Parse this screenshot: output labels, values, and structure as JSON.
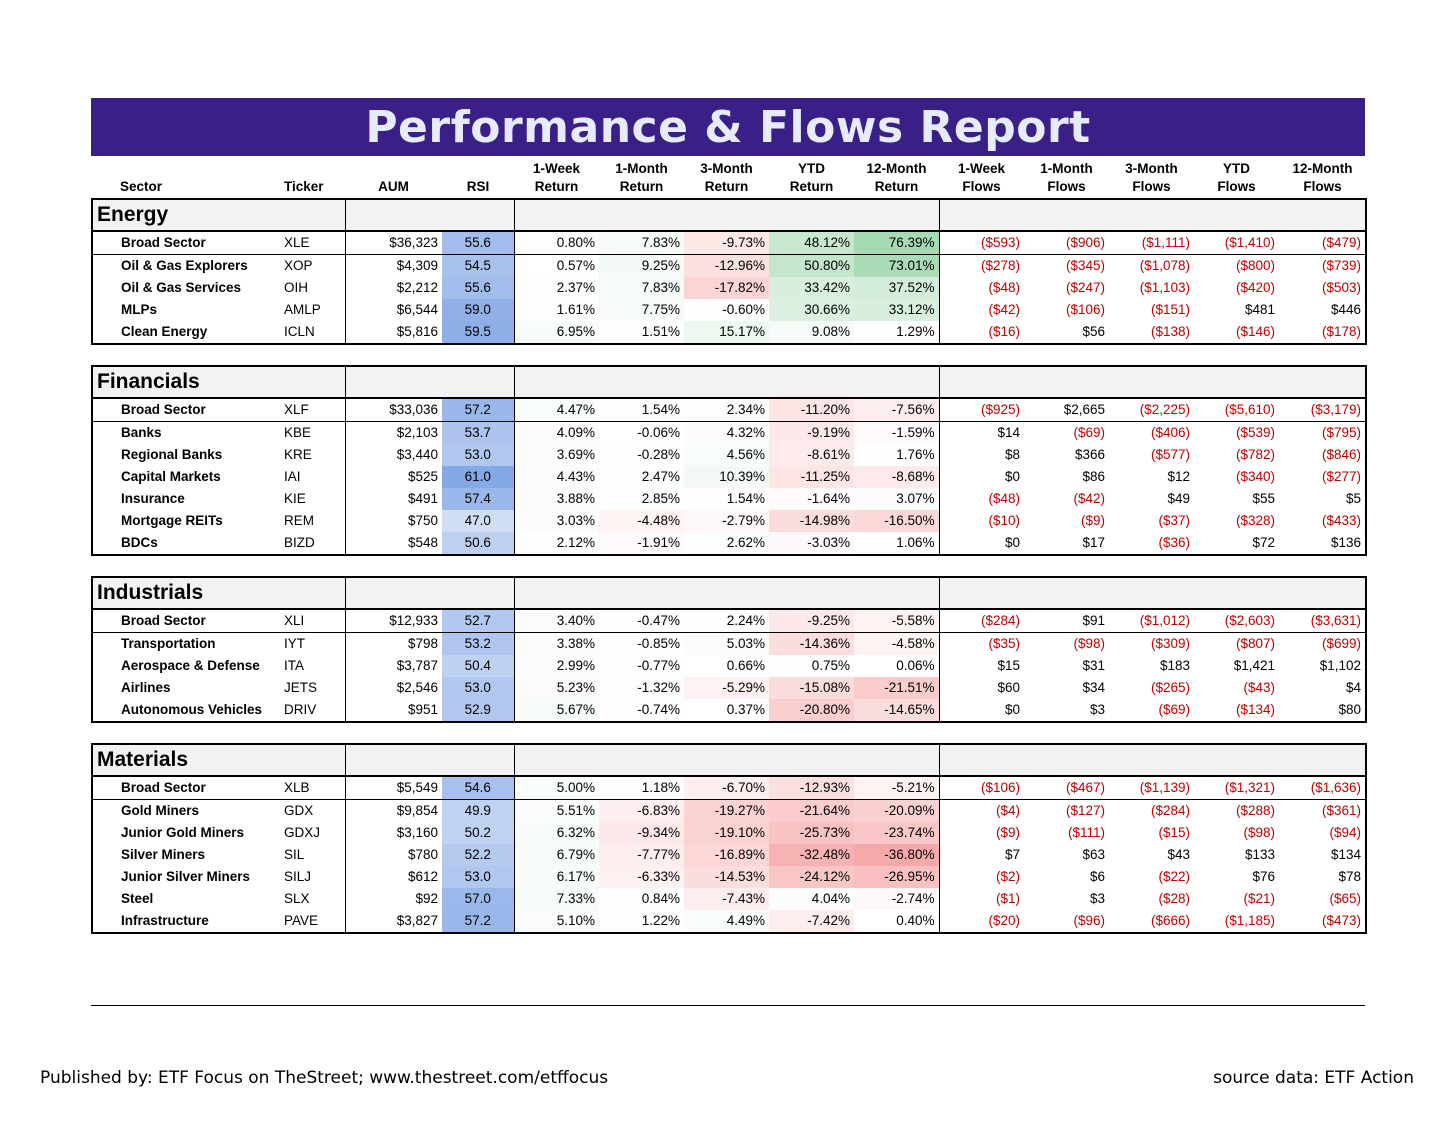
{
  "title": "Performance & Flows Report",
  "headers": {
    "sector": "Sector",
    "ticker": "Ticker",
    "aum": "AUM",
    "rsi": "RSI",
    "r1w": [
      "1-Week",
      "Return"
    ],
    "r1m": [
      "1-Month",
      "Return"
    ],
    "r3m": [
      "3-Month",
      "Return"
    ],
    "rytd": [
      "YTD",
      "Return"
    ],
    "r12m": [
      "12-Month",
      "Return"
    ],
    "f1w": [
      "1-Week",
      "Flows"
    ],
    "f1m": [
      "1-Month",
      "Flows"
    ],
    "f3m": [
      "3-Month",
      "Flows"
    ],
    "fytd": [
      "YTD",
      "Flows"
    ],
    "f12m": [
      "12-Month",
      "Flows"
    ]
  },
  "colors": {
    "banner": "#3a1f86",
    "negative_flow": "#c00000",
    "rsi_scale": "blue",
    "return_positive": "green",
    "return_negative": "red"
  },
  "sections": [
    {
      "name": "Energy",
      "rows": [
        {
          "sector": "Broad Sector",
          "ticker": "XLE",
          "aum": "$36,323",
          "rsi": "55.6",
          "returns": [
            "0.80%",
            "7.83%",
            "-9.73%",
            "48.12%",
            "76.39%"
          ],
          "flows": [
            "($593)",
            "($906)",
            "($1,111)",
            "($1,410)",
            "($479)"
          ]
        },
        {
          "sector": "Oil & Gas Explorers",
          "ticker": "XOP",
          "aum": "$4,309",
          "rsi": "54.5",
          "returns": [
            "0.57%",
            "9.25%",
            "-12.96%",
            "50.80%",
            "73.01%"
          ],
          "flows": [
            "($278)",
            "($345)",
            "($1,078)",
            "($800)",
            "($739)"
          ]
        },
        {
          "sector": "Oil & Gas Services",
          "ticker": "OIH",
          "aum": "$2,212",
          "rsi": "55.6",
          "returns": [
            "2.37%",
            "7.83%",
            "-17.82%",
            "33.42%",
            "37.52%"
          ],
          "flows": [
            "($48)",
            "($247)",
            "($1,103)",
            "($420)",
            "($503)"
          ]
        },
        {
          "sector": "MLPs",
          "ticker": "AMLP",
          "aum": "$6,544",
          "rsi": "59.0",
          "returns": [
            "1.61%",
            "7.75%",
            "-0.60%",
            "30.66%",
            "33.12%"
          ],
          "flows": [
            "($42)",
            "($106)",
            "($151)",
            "$481",
            "$446"
          ]
        },
        {
          "sector": "Clean Energy",
          "ticker": "ICLN",
          "aum": "$5,816",
          "rsi": "59.5",
          "returns": [
            "6.95%",
            "1.51%",
            "15.17%",
            "9.08%",
            "1.29%"
          ],
          "flows": [
            "($16)",
            "$56",
            "($138)",
            "($146)",
            "($178)"
          ]
        }
      ]
    },
    {
      "name": "Financials",
      "rows": [
        {
          "sector": "Broad Sector",
          "ticker": "XLF",
          "aum": "$33,036",
          "rsi": "57.2",
          "returns": [
            "4.47%",
            "1.54%",
            "2.34%",
            "-11.20%",
            "-7.56%"
          ],
          "flows": [
            "($925)",
            "$2,665",
            "($2,225)",
            "($5,610)",
            "($3,179)"
          ]
        },
        {
          "sector": "Banks",
          "ticker": "KBE",
          "aum": "$2,103",
          "rsi": "53.7",
          "returns": [
            "4.09%",
            "-0.06%",
            "4.32%",
            "-9.19%",
            "-1.59%"
          ],
          "flows": [
            "$14",
            "($69)",
            "($406)",
            "($539)",
            "($795)"
          ]
        },
        {
          "sector": "Regional Banks",
          "ticker": "KRE",
          "aum": "$3,440",
          "rsi": "53.0",
          "returns": [
            "3.69%",
            "-0.28%",
            "4.56%",
            "-8.61%",
            "1.76%"
          ],
          "flows": [
            "$8",
            "$366",
            "($577)",
            "($782)",
            "($846)"
          ]
        },
        {
          "sector": "Capital Markets",
          "ticker": "IAI",
          "aum": "$525",
          "rsi": "61.0",
          "returns": [
            "4.43%",
            "2.47%",
            "10.39%",
            "-11.25%",
            "-8.68%"
          ],
          "flows": [
            "$0",
            "$86",
            "$12",
            "($340)",
            "($277)"
          ]
        },
        {
          "sector": "Insurance",
          "ticker": "KIE",
          "aum": "$491",
          "rsi": "57.4",
          "returns": [
            "3.88%",
            "2.85%",
            "1.54%",
            "-1.64%",
            "3.07%"
          ],
          "flows": [
            "($48)",
            "($42)",
            "$49",
            "$55",
            "$5"
          ]
        },
        {
          "sector": "Mortgage REITs",
          "ticker": "REM",
          "aum": "$750",
          "rsi": "47.0",
          "returns": [
            "3.03%",
            "-4.48%",
            "-2.79%",
            "-14.98%",
            "-16.50%"
          ],
          "flows": [
            "($10)",
            "($9)",
            "($37)",
            "($328)",
            "($433)"
          ]
        },
        {
          "sector": "BDCs",
          "ticker": "BIZD",
          "aum": "$548",
          "rsi": "50.6",
          "returns": [
            "2.12%",
            "-1.91%",
            "2.62%",
            "-3.03%",
            "1.06%"
          ],
          "flows": [
            "$0",
            "$17",
            "($36)",
            "$72",
            "$136"
          ]
        }
      ]
    },
    {
      "name": "Industrials",
      "rows": [
        {
          "sector": "Broad Sector",
          "ticker": "XLI",
          "aum": "$12,933",
          "rsi": "52.7",
          "returns": [
            "3.40%",
            "-0.47%",
            "2.24%",
            "-9.25%",
            "-5.58%"
          ],
          "flows": [
            "($284)",
            "$91",
            "($1,012)",
            "($2,603)",
            "($3,631)"
          ]
        },
        {
          "sector": "Transportation",
          "ticker": "IYT",
          "aum": "$798",
          "rsi": "53.2",
          "returns": [
            "3.38%",
            "-0.85%",
            "5.03%",
            "-14.36%",
            "-4.58%"
          ],
          "flows": [
            "($35)",
            "($98)",
            "($309)",
            "($807)",
            "($699)"
          ]
        },
        {
          "sector": "Aerospace & Defense",
          "ticker": "ITA",
          "aum": "$3,787",
          "rsi": "50.4",
          "returns": [
            "2.99%",
            "-0.77%",
            "0.66%",
            "0.75%",
            "0.06%"
          ],
          "flows": [
            "$15",
            "$31",
            "$183",
            "$1,421",
            "$1,102"
          ]
        },
        {
          "sector": "Airlines",
          "ticker": "JETS",
          "aum": "$2,546",
          "rsi": "53.0",
          "returns": [
            "5.23%",
            "-1.32%",
            "-5.29%",
            "-15.08%",
            "-21.51%"
          ],
          "flows": [
            "$60",
            "$34",
            "($265)",
            "($43)",
            "$4"
          ]
        },
        {
          "sector": "Autonomous Vehicles",
          "ticker": "DRIV",
          "aum": "$951",
          "rsi": "52.9",
          "returns": [
            "5.67%",
            "-0.74%",
            "0.37%",
            "-20.80%",
            "-14.65%"
          ],
          "flows": [
            "$0",
            "$3",
            "($69)",
            "($134)",
            "$80"
          ]
        }
      ]
    },
    {
      "name": "Materials",
      "rows": [
        {
          "sector": "Broad Sector",
          "ticker": "XLB",
          "aum": "$5,549",
          "rsi": "54.6",
          "returns": [
            "5.00%",
            "1.18%",
            "-6.70%",
            "-12.93%",
            "-5.21%"
          ],
          "flows": [
            "($106)",
            "($467)",
            "($1,139)",
            "($1,321)",
            "($1,636)"
          ]
        },
        {
          "sector": "Gold Miners",
          "ticker": "GDX",
          "aum": "$9,854",
          "rsi": "49.9",
          "returns": [
            "5.51%",
            "-6.83%",
            "-19.27%",
            "-21.64%",
            "-20.09%"
          ],
          "flows": [
            "($4)",
            "($127)",
            "($284)",
            "($288)",
            "($361)"
          ]
        },
        {
          "sector": "Junior Gold Miners",
          "ticker": "GDXJ",
          "aum": "$3,160",
          "rsi": "50.2",
          "returns": [
            "6.32%",
            "-9.34%",
            "-19.10%",
            "-25.73%",
            "-23.74%"
          ],
          "flows": [
            "($9)",
            "($111)",
            "($15)",
            "($98)",
            "($94)"
          ]
        },
        {
          "sector": "Silver Miners",
          "ticker": "SIL",
          "aum": "$780",
          "rsi": "52.2",
          "returns": [
            "6.79%",
            "-7.77%",
            "-16.89%",
            "-32.48%",
            "-36.80%"
          ],
          "flows": [
            "$7",
            "$63",
            "$43",
            "$133",
            "$134"
          ]
        },
        {
          "sector": "Junior Silver Miners",
          "ticker": "SILJ",
          "aum": "$612",
          "rsi": "53.0",
          "returns": [
            "6.17%",
            "-6.33%",
            "-14.53%",
            "-24.12%",
            "-26.95%"
          ],
          "flows": [
            "($2)",
            "$6",
            "($22)",
            "$76",
            "$78"
          ]
        },
        {
          "sector": "Steel",
          "ticker": "SLX",
          "aum": "$92",
          "rsi": "57.0",
          "returns": [
            "7.33%",
            "0.84%",
            "-7.43%",
            "4.04%",
            "-2.74%"
          ],
          "flows": [
            "($1)",
            "$3",
            "($28)",
            "($21)",
            "($65)"
          ]
        },
        {
          "sector": "Infrastructure",
          "ticker": "PAVE",
          "aum": "$3,827",
          "rsi": "57.2",
          "returns": [
            "5.10%",
            "1.22%",
            "4.49%",
            "-7.42%",
            "0.40%"
          ],
          "flows": [
            "($20)",
            "($96)",
            "($666)",
            "($1,185)",
            "($473)"
          ]
        }
      ]
    }
  ],
  "footer": {
    "publisher": "Published by: ETF Focus on TheStreet; www.thestreet.com/etffocus",
    "source": "source data: ETF Action"
  }
}
